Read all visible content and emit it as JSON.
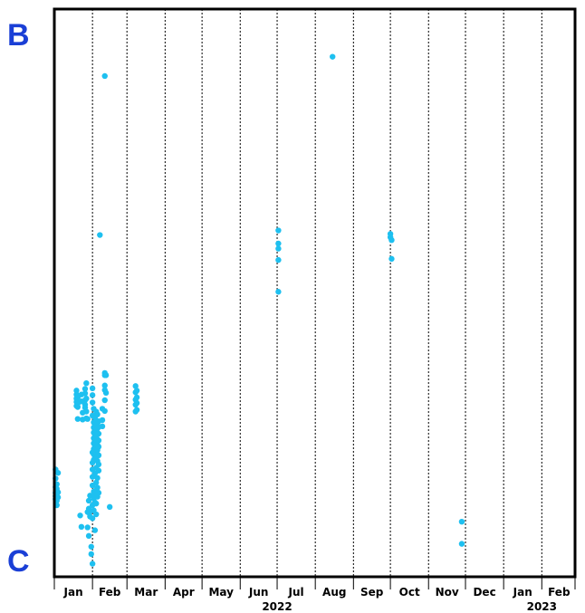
{
  "colors": {
    "points": "#1ec0f0",
    "labels": "#1a3fd6",
    "axis": "#000000"
  },
  "chart_data": {
    "type": "scatter",
    "title": "",
    "xlabel": "",
    "ylabel": "",
    "y_top_label": "B",
    "y_bottom_label": "C",
    "xlim": [
      "2022-01-01",
      "2023-02-28"
    ],
    "ylim": [
      0,
      100
    ],
    "grid": "vertical dashed at month boundaries",
    "month_ticks": [
      {
        "label": "Jan",
        "start": "2022-01-01",
        "end": "2022-02-01"
      },
      {
        "label": "Feb",
        "start": "2022-02-01",
        "end": "2022-03-01"
      },
      {
        "label": "Mar",
        "start": "2022-03-01",
        "end": "2022-04-01"
      },
      {
        "label": "Apr",
        "start": "2022-04-01",
        "end": "2022-05-01"
      },
      {
        "label": "May",
        "start": "2022-05-01",
        "end": "2022-06-01"
      },
      {
        "label": "Jun",
        "start": "2022-06-01",
        "end": "2022-07-01"
      },
      {
        "label": "Jul",
        "start": "2022-07-01",
        "end": "2022-08-01"
      },
      {
        "label": "Aug",
        "start": "2022-08-01",
        "end": "2022-09-01"
      },
      {
        "label": "Sep",
        "start": "2022-09-01",
        "end": "2022-10-01"
      },
      {
        "label": "Oct",
        "start": "2022-10-01",
        "end": "2022-11-01"
      },
      {
        "label": "Nov",
        "start": "2022-11-01",
        "end": "2022-12-01"
      },
      {
        "label": "Dec",
        "start": "2022-12-01",
        "end": "2023-01-01"
      },
      {
        "label": "Jan",
        "start": "2023-01-01",
        "end": "2023-02-01"
      },
      {
        "label": "Feb",
        "start": "2023-02-01",
        "end": "2023-03-01"
      }
    ],
    "year_labels": [
      {
        "label": "2022",
        "date": "2022-07-01"
      },
      {
        "label": "2023",
        "date": "2023-02-01"
      }
    ],
    "points": [
      {
        "x": "2022-01-02",
        "y": 18.9
      },
      {
        "x": "2022-01-02",
        "y": 17.3
      },
      {
        "x": "2022-01-02",
        "y": 15.8
      },
      {
        "x": "2022-01-02",
        "y": 14.8
      },
      {
        "x": "2022-01-02",
        "y": 14.2
      },
      {
        "x": "2022-01-02",
        "y": 13.7
      },
      {
        "x": "2022-01-03",
        "y": 16.3
      },
      {
        "x": "2022-01-03",
        "y": 15.5
      },
      {
        "x": "2022-01-03",
        "y": 14.5
      },
      {
        "x": "2022-01-03",
        "y": 13.4
      },
      {
        "x": "2022-01-03",
        "y": 12.6
      },
      {
        "x": "2022-01-04",
        "y": 18.3
      },
      {
        "x": "2022-01-04",
        "y": 14.9
      },
      {
        "x": "2022-01-04",
        "y": 14.0
      },
      {
        "x": "2022-01-19",
        "y": 32.8
      },
      {
        "x": "2022-01-19",
        "y": 32.1
      },
      {
        "x": "2022-01-19",
        "y": 31.4
      },
      {
        "x": "2022-01-19",
        "y": 30.8
      },
      {
        "x": "2022-01-19",
        "y": 30.1
      },
      {
        "x": "2022-01-20",
        "y": 31.6
      },
      {
        "x": "2022-01-20",
        "y": 30.5
      },
      {
        "x": "2022-01-20",
        "y": 29.9
      },
      {
        "x": "2022-01-20",
        "y": 27.8
      },
      {
        "x": "2022-01-22",
        "y": 10.8
      },
      {
        "x": "2022-01-23",
        "y": 8.8
      },
      {
        "x": "2022-01-23",
        "y": 32.1
      },
      {
        "x": "2022-01-23",
        "y": 30.9
      },
      {
        "x": "2022-01-24",
        "y": 27.7
      },
      {
        "x": "2022-01-24",
        "y": 28.9
      },
      {
        "x": "2022-01-26",
        "y": 33.1
      },
      {
        "x": "2022-01-26",
        "y": 32.3
      },
      {
        "x": "2022-01-26",
        "y": 31.1
      },
      {
        "x": "2022-01-26",
        "y": 30.3
      },
      {
        "x": "2022-01-26",
        "y": 29.8
      },
      {
        "x": "2022-01-27",
        "y": 34.1
      },
      {
        "x": "2022-01-27",
        "y": 31.4
      },
      {
        "x": "2022-01-27",
        "y": 29.1
      },
      {
        "x": "2022-01-27",
        "y": 27.9
      },
      {
        "x": "2022-01-28",
        "y": 27.8
      },
      {
        "x": "2022-01-28",
        "y": 11.4
      },
      {
        "x": "2022-01-28",
        "y": 8.7
      },
      {
        "x": "2022-01-29",
        "y": 13.4
      },
      {
        "x": "2022-01-29",
        "y": 12.0
      },
      {
        "x": "2022-01-29",
        "y": 11.3
      },
      {
        "x": "2022-01-29",
        "y": 7.2
      },
      {
        "x": "2022-01-30",
        "y": 14.3
      },
      {
        "x": "2022-01-30",
        "y": 11.5
      },
      {
        "x": "2022-01-30",
        "y": 10.6
      },
      {
        "x": "2022-01-31",
        "y": 5.3
      },
      {
        "x": "2022-01-31",
        "y": 4.0
      },
      {
        "x": "2022-02-01",
        "y": 33.2
      },
      {
        "x": "2022-02-01",
        "y": 32.0
      },
      {
        "x": "2022-02-01",
        "y": 30.7
      },
      {
        "x": "2022-02-01",
        "y": 28.4
      },
      {
        "x": "2022-02-01",
        "y": 21.9
      },
      {
        "x": "2022-02-01",
        "y": 20.1
      },
      {
        "x": "2022-02-01",
        "y": 18.9
      },
      {
        "x": "2022-02-01",
        "y": 17.6
      },
      {
        "x": "2022-02-01",
        "y": 16.1
      },
      {
        "x": "2022-02-01",
        "y": 12.6
      },
      {
        "x": "2022-02-01",
        "y": 10.3
      },
      {
        "x": "2022-02-01",
        "y": 2.3
      },
      {
        "x": "2022-02-02",
        "y": 29.6
      },
      {
        "x": "2022-02-02",
        "y": 27.2
      },
      {
        "x": "2022-02-02",
        "y": 26.3
      },
      {
        "x": "2022-02-02",
        "y": 25.4
      },
      {
        "x": "2022-02-02",
        "y": 24.4
      },
      {
        "x": "2022-02-02",
        "y": 23.5
      },
      {
        "x": "2022-02-02",
        "y": 22.5
      },
      {
        "x": "2022-02-02",
        "y": 21.6
      },
      {
        "x": "2022-02-02",
        "y": 20.6
      },
      {
        "x": "2022-02-02",
        "y": 15.0
      },
      {
        "x": "2022-02-02",
        "y": 13.8
      },
      {
        "x": "2022-02-02",
        "y": 11.7
      },
      {
        "x": "2022-02-03",
        "y": 28.0
      },
      {
        "x": "2022-02-03",
        "y": 26.8
      },
      {
        "x": "2022-02-03",
        "y": 25.9
      },
      {
        "x": "2022-02-03",
        "y": 24.9
      },
      {
        "x": "2022-02-03",
        "y": 23.9
      },
      {
        "x": "2022-02-03",
        "y": 23.0
      },
      {
        "x": "2022-02-03",
        "y": 22.0
      },
      {
        "x": "2022-02-03",
        "y": 21.1
      },
      {
        "x": "2022-02-03",
        "y": 18.2
      },
      {
        "x": "2022-02-03",
        "y": 14.4
      },
      {
        "x": "2022-02-03",
        "y": 13.1
      },
      {
        "x": "2022-02-03",
        "y": 8.2
      },
      {
        "x": "2022-02-04",
        "y": 29.1
      },
      {
        "x": "2022-02-04",
        "y": 27.5
      },
      {
        "x": "2022-02-04",
        "y": 26.6
      },
      {
        "x": "2022-02-04",
        "y": 25.7
      },
      {
        "x": "2022-02-04",
        "y": 24.7
      },
      {
        "x": "2022-02-04",
        "y": 23.7
      },
      {
        "x": "2022-02-04",
        "y": 22.8
      },
      {
        "x": "2022-02-04",
        "y": 21.8
      },
      {
        "x": "2022-02-04",
        "y": 20.9
      },
      {
        "x": "2022-02-04",
        "y": 19.2
      },
      {
        "x": "2022-02-04",
        "y": 16.6
      },
      {
        "x": "2022-02-04",
        "y": 15.3
      },
      {
        "x": "2022-02-04",
        "y": 12.9
      },
      {
        "x": "2022-02-04",
        "y": 11.0
      },
      {
        "x": "2022-02-05",
        "y": 28.6
      },
      {
        "x": "2022-02-05",
        "y": 27.0
      },
      {
        "x": "2022-02-05",
        "y": 26.1
      },
      {
        "x": "2022-02-05",
        "y": 25.1
      },
      {
        "x": "2022-02-05",
        "y": 24.2
      },
      {
        "x": "2022-02-05",
        "y": 23.2
      },
      {
        "x": "2022-02-05",
        "y": 22.3
      },
      {
        "x": "2022-02-05",
        "y": 21.3
      },
      {
        "x": "2022-02-05",
        "y": 20.4
      },
      {
        "x": "2022-02-05",
        "y": 17.4
      },
      {
        "x": "2022-02-05",
        "y": 15.7
      },
      {
        "x": "2022-02-05",
        "y": 14.1
      },
      {
        "x": "2022-02-06",
        "y": 27.4
      },
      {
        "x": "2022-02-06",
        "y": 26.4
      },
      {
        "x": "2022-02-06",
        "y": 25.2
      },
      {
        "x": "2022-02-06",
        "y": 24.0
      },
      {
        "x": "2022-02-06",
        "y": 22.9
      },
      {
        "x": "2022-02-06",
        "y": 21.4
      },
      {
        "x": "2022-02-06",
        "y": 19.8
      },
      {
        "x": "2022-02-06",
        "y": 18.7
      },
      {
        "x": "2022-02-06",
        "y": 14.8
      },
      {
        "x": "2022-02-07",
        "y": 60.2
      },
      {
        "x": "2022-02-09",
        "y": 29.6
      },
      {
        "x": "2022-02-09",
        "y": 27.6
      },
      {
        "x": "2022-02-09",
        "y": 26.5
      },
      {
        "x": "2022-02-11",
        "y": 35.9
      },
      {
        "x": "2022-02-11",
        "y": 35.5
      },
      {
        "x": "2022-02-11",
        "y": 33.7
      },
      {
        "x": "2022-02-11",
        "y": 32.9
      },
      {
        "x": "2022-02-11",
        "y": 31.1
      },
      {
        "x": "2022-02-11",
        "y": 29.2
      },
      {
        "x": "2022-02-11",
        "y": 88.2
      },
      {
        "x": "2022-02-12",
        "y": 35.5
      },
      {
        "x": "2022-02-12",
        "y": 32.4
      },
      {
        "x": "2022-02-15",
        "y": 12.3
      },
      {
        "x": "2022-03-08",
        "y": 33.6
      },
      {
        "x": "2022-03-08",
        "y": 32.5
      },
      {
        "x": "2022-03-08",
        "y": 31.2
      },
      {
        "x": "2022-03-08",
        "y": 30.3
      },
      {
        "x": "2022-03-08",
        "y": 29.1
      },
      {
        "x": "2022-03-09",
        "y": 32.8
      },
      {
        "x": "2022-03-09",
        "y": 31.6
      },
      {
        "x": "2022-03-09",
        "y": 30.6
      },
      {
        "x": "2022-03-09",
        "y": 29.4
      },
      {
        "x": "2022-07-02",
        "y": 61.0
      },
      {
        "x": "2022-07-02",
        "y": 58.7
      },
      {
        "x": "2022-07-02",
        "y": 57.8
      },
      {
        "x": "2022-07-02",
        "y": 55.8
      },
      {
        "x": "2022-07-02",
        "y": 50.2
      },
      {
        "x": "2022-08-15",
        "y": 91.6
      },
      {
        "x": "2022-10-01",
        "y": 60.4
      },
      {
        "x": "2022-10-01",
        "y": 59.8
      },
      {
        "x": "2022-10-02",
        "y": 59.3
      },
      {
        "x": "2022-10-02",
        "y": 56.0
      },
      {
        "x": "2022-11-28",
        "y": 9.7
      },
      {
        "x": "2022-11-28",
        "y": 5.8
      }
    ]
  }
}
